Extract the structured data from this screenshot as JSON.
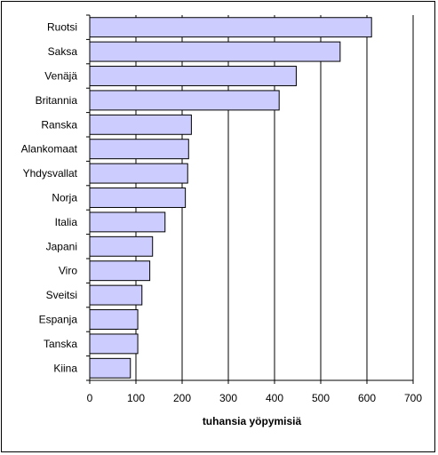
{
  "chart_data": {
    "type": "bar",
    "orientation": "horizontal",
    "categories": [
      "Ruotsi",
      "Saksa",
      "Venäjä",
      "Britannia",
      "Ranska",
      "Alankomaat",
      "Yhdysvallat",
      "Norja",
      "Italia",
      "Japani",
      "Viro",
      "Sveitsi",
      "Espanja",
      "Tanska",
      "Kiina"
    ],
    "values": [
      610,
      542,
      447,
      410,
      220,
      214,
      212,
      207,
      163,
      136,
      130,
      113,
      104,
      104,
      88
    ],
    "xlabel": "tuhansia yöpymisiä",
    "ylabel": "",
    "xlim": [
      0,
      700
    ],
    "xticks": [
      "0",
      "100",
      "200",
      "300",
      "400",
      "500",
      "600",
      "700"
    ],
    "grid": "vertical",
    "legend": "none",
    "bar_color": "#ccccff",
    "bar_border_color": "#000000"
  }
}
